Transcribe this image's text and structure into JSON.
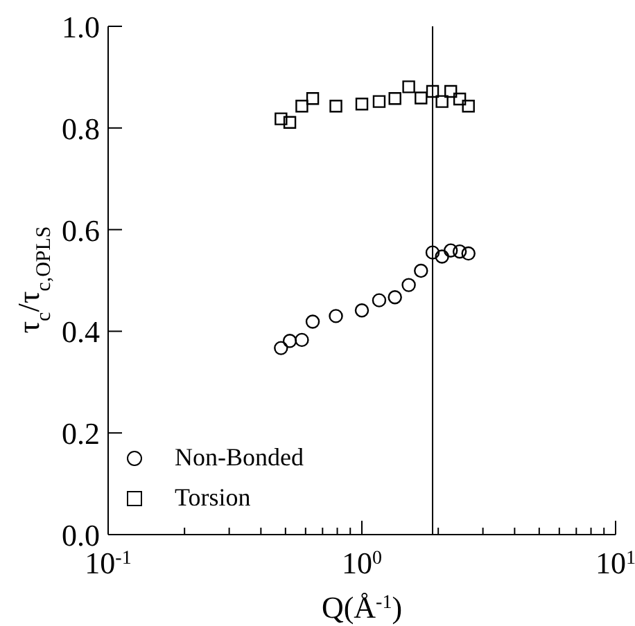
{
  "chart_data": {
    "type": "scatter",
    "xlabel": "Q(Å$^{-1}$)",
    "ylabel": "τ$_{c}$/τ$_{c,OPLS}$",
    "x": [
      0.48,
      0.52,
      0.58,
      0.64,
      0.79,
      1.0,
      1.17,
      1.35,
      1.53,
      1.71,
      1.9,
      2.07,
      2.24,
      2.43,
      2.63
    ],
    "series": [
      {
        "name": "Non-Bonded",
        "color": "#000000",
        "marker": "circle",
        "values": [
          0.367,
          0.381,
          0.383,
          0.419,
          0.43,
          0.441,
          0.461,
          0.467,
          0.491,
          0.519,
          0.555,
          0.547,
          0.559,
          0.557,
          0.553
        ]
      },
      {
        "name": "Torsion",
        "color": "#000000",
        "marker": "square",
        "values": [
          0.818,
          0.811,
          0.843,
          0.858,
          0.843,
          0.847,
          0.852,
          0.858,
          0.881,
          0.859,
          0.872,
          0.852,
          0.872,
          0.857,
          0.843
        ]
      }
    ],
    "log": "x",
    "xlim": [
      0.1,
      10
    ],
    "xticks": [
      {
        "value": 0.1,
        "label": "10$^{-1}$"
      },
      {
        "value": 0.2,
        "label": null
      },
      {
        "value": 0.3,
        "label": null
      },
      {
        "value": 0.4,
        "label": null
      },
      {
        "value": 0.5,
        "label": null
      },
      {
        "value": 0.6,
        "label": null
      },
      {
        "value": 0.7,
        "label": null
      },
      {
        "value": 0.8,
        "label": null
      },
      {
        "value": 0.9,
        "label": null
      },
      {
        "value": 1,
        "label": "10$^{0}$"
      },
      {
        "value": 2,
        "label": null
      },
      {
        "value": 3,
        "label": null
      },
      {
        "value": 4,
        "label": null
      },
      {
        "value": 5,
        "label": null
      },
      {
        "value": 6,
        "label": null
      },
      {
        "value": 7,
        "label": null
      },
      {
        "value": 8,
        "label": null
      },
      {
        "value": 9,
        "label": null
      },
      {
        "value": 10,
        "label": "10$^{1}$"
      }
    ],
    "ylim": [
      0,
      1
    ],
    "yticks": [
      {
        "value": 0,
        "label": "0.0"
      },
      {
        "value": 0.2,
        "label": "0.2"
      },
      {
        "value": 0.4,
        "label": "0.4"
      },
      {
        "value": 0.6,
        "label": "0.6"
      },
      {
        "value": 0.8,
        "label": "0.8"
      },
      {
        "value": 1,
        "label": "1.0"
      }
    ],
    "ref_lines": [
      {
        "axis": "x",
        "value": 1.9,
        "color": "#000000"
      }
    ],
    "legend": "bottom left",
    "grid": false
  }
}
